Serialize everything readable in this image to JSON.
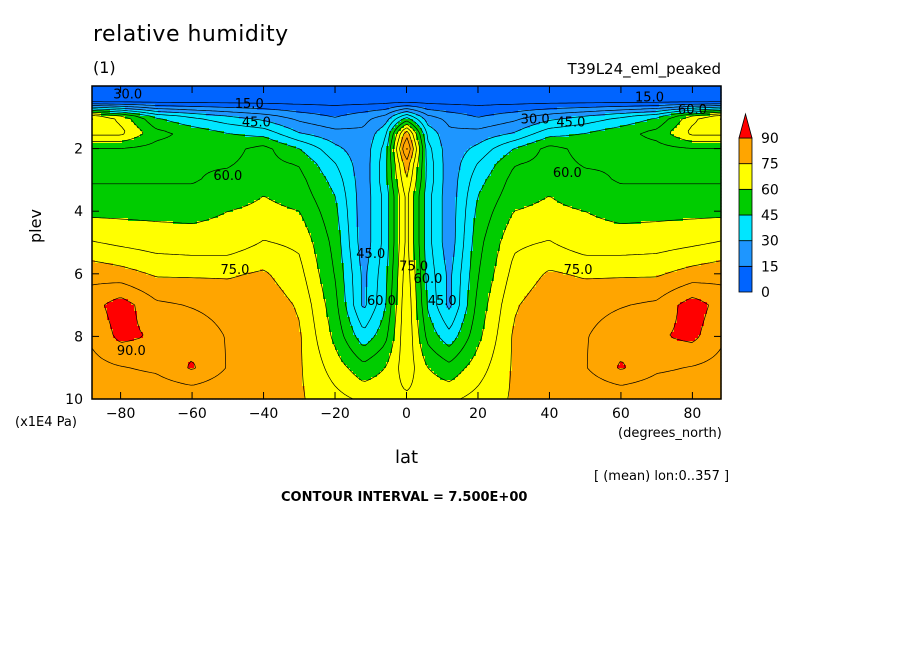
{
  "header": {
    "title": "relative humidity",
    "subtitle": "(1)",
    "run_name": "T39L24_eml_peaked"
  },
  "footer": {
    "mean_note": "[ (mean) lon:0..357 ]",
    "contour_interval": "CONTOUR INTERVAL = 7.500E+00"
  },
  "chart_data": {
    "type": "heatmap",
    "title": "relative humidity",
    "subtitle": "(1)",
    "xlabel": "lat",
    "xunit": "(degrees_north)",
    "ylabel": "plev",
    "yunit": "(x1E4 Pa)",
    "xlim": [
      -88,
      88
    ],
    "ylim": [
      10,
      0
    ],
    "xticks": [
      -80,
      -60,
      -40,
      -20,
      0,
      20,
      40,
      60,
      80
    ],
    "yticks": [
      2,
      4,
      6,
      8,
      10
    ],
    "contour_interval": 7.5,
    "colorbar": {
      "levels": [
        0,
        15,
        30,
        45,
        60,
        75,
        90
      ],
      "colors": [
        "#0064ff",
        "#1e96ff",
        "#00e6ff",
        "#00cc00",
        "#ffff00",
        "#ffa500",
        "#ff0000"
      ]
    },
    "x": [
      -88,
      -80,
      -70,
      -60,
      -50,
      -40,
      -30,
      -20,
      -12,
      -6,
      0,
      6,
      12,
      20,
      30,
      40,
      50,
      60,
      70,
      80,
      88
    ],
    "y": [
      0.5,
      1,
      1.5,
      2,
      2.5,
      3,
      3.5,
      4,
      5,
      6,
      7,
      8,
      9,
      10
    ],
    "values": [
      [
        5,
        5,
        5,
        5,
        5,
        5,
        5,
        5,
        5,
        5,
        5,
        5,
        5,
        5,
        5,
        5,
        5,
        5,
        5,
        5,
        5
      ],
      [
        76,
        65,
        45,
        38,
        32,
        27,
        20,
        15,
        20,
        25,
        45,
        25,
        20,
        15,
        20,
        27,
        32,
        38,
        45,
        65,
        76
      ],
      [
        70,
        70,
        55,
        50,
        45,
        42,
        30,
        25,
        24,
        35,
        80,
        35,
        24,
        25,
        30,
        42,
        45,
        50,
        55,
        70,
        70
      ],
      [
        52,
        52,
        50,
        50,
        50,
        55,
        45,
        32,
        25,
        40,
        92,
        40,
        25,
        32,
        45,
        55,
        50,
        50,
        50,
        52,
        52
      ],
      [
        50,
        51,
        52,
        52,
        52,
        55,
        52,
        38,
        25,
        42,
        80,
        42,
        25,
        38,
        52,
        55,
        52,
        52,
        52,
        51,
        50
      ],
      [
        52,
        52,
        52,
        52,
        54,
        57,
        55,
        42,
        25,
        42,
        75,
        42,
        25,
        42,
        55,
        57,
        54,
        52,
        52,
        52,
        52
      ],
      [
        54,
        54,
        54,
        54,
        56,
        60,
        57,
        45,
        25,
        40,
        70,
        40,
        25,
        45,
        57,
        60,
        56,
        54,
        54,
        54,
        54
      ],
      [
        58,
        58,
        58,
        58,
        60,
        62,
        60,
        47,
        25,
        40,
        70,
        40,
        25,
        47,
        60,
        62,
        60,
        58,
        58,
        58,
        58
      ],
      [
        68,
        66,
        64,
        63,
        63,
        68,
        66,
        50,
        25,
        40,
        70,
        40,
        25,
        50,
        66,
        68,
        63,
        63,
        64,
        66,
        68
      ],
      [
        80,
        78,
        74,
        74,
        74,
        76,
        70,
        52,
        28,
        42,
        72,
        42,
        28,
        52,
        70,
        76,
        74,
        74,
        74,
        78,
        80
      ],
      [
        87,
        94,
        84,
        82,
        80,
        80,
        74,
        55,
        28,
        44,
        74,
        44,
        28,
        55,
        74,
        80,
        80,
        82,
        84,
        94,
        87
      ],
      [
        84,
        92,
        89,
        87,
        82,
        82,
        76,
        58,
        40,
        50,
        74,
        50,
        40,
        58,
        76,
        82,
        82,
        87,
        89,
        92,
        84
      ],
      [
        80,
        82,
        84,
        91,
        82,
        80,
        76,
        64,
        55,
        60,
        72,
        60,
        55,
        64,
        76,
        80,
        82,
        91,
        84,
        82,
        80
      ],
      [
        76,
        76,
        76,
        76,
        76,
        76,
        76,
        70,
        66,
        66,
        66,
        66,
        66,
        70,
        76,
        76,
        76,
        76,
        76,
        76,
        76
      ]
    ],
    "contour_labels": [
      {
        "text": "30.0",
        "x": -78,
        "p": 0.4
      },
      {
        "text": "15.0",
        "x": -44,
        "p": 0.7
      },
      {
        "text": "45.0",
        "x": -42,
        "p": 1.3
      },
      {
        "text": "60.0",
        "x": -50,
        "p": 3.0
      },
      {
        "text": "75.0",
        "x": -48,
        "p": 6.0
      },
      {
        "text": "90.0",
        "x": -77,
        "p": 8.6
      },
      {
        "text": "60.0",
        "x": -7,
        "p": 7.0
      },
      {
        "text": "45.0",
        "x": -10,
        "p": 5.5
      },
      {
        "text": "75.0",
        "x": 2,
        "p": 5.9
      },
      {
        "text": "60.0",
        "x": 6,
        "p": 6.3
      },
      {
        "text": "45.0",
        "x": 10,
        "p": 7.0
      },
      {
        "text": "30.0",
        "x": 36,
        "p": 1.2
      },
      {
        "text": "45.0",
        "x": 46,
        "p": 1.3
      },
      {
        "text": "60.0",
        "x": 45,
        "p": 2.9
      },
      {
        "text": "75.0",
        "x": 48,
        "p": 6.0
      },
      {
        "text": "15.0",
        "x": 68,
        "p": 0.5
      },
      {
        "text": "60.0",
        "x": 80,
        "p": 0.9
      }
    ]
  }
}
